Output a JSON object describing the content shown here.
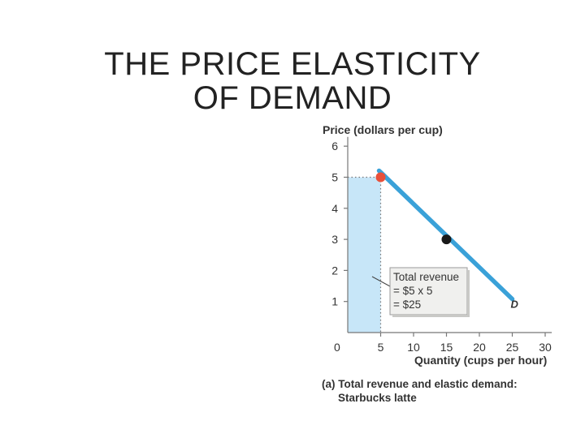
{
  "title_lines": [
    "THE PRICE ELASTICITY",
    "OF DEMAND"
  ],
  "chart_data": {
    "type": "line",
    "ylabel": "Price (dollars per cup)",
    "xlabel": "Quantity (cups per hour)",
    "origin_label": "0",
    "xticks": [
      5,
      10,
      15,
      20,
      25,
      30
    ],
    "yticks": [
      1,
      2,
      3,
      4,
      5,
      6
    ],
    "xlim": [
      0,
      31
    ],
    "ylim": [
      0,
      6.3
    ],
    "series": [
      {
        "label": "D",
        "x": [
          5,
          25
        ],
        "y": [
          5,
          1
        ],
        "color": "#3aa1d8"
      }
    ],
    "highlight_point": {
      "x": 5,
      "y": 5,
      "color": "#e8503a"
    },
    "reference_point": {
      "x": 15,
      "y": 3,
      "color": "#1a1a1a"
    },
    "revenue_rect": {
      "x": 5,
      "y": 5,
      "color": "#c7e6f8"
    },
    "highlight_tick_color": "#e8503a",
    "annotation": [
      "Total revenue",
      "= $5 x 5",
      "= $25"
    ],
    "caption": [
      "(a) Total revenue and elastic demand:",
      "Starbucks latte"
    ]
  }
}
